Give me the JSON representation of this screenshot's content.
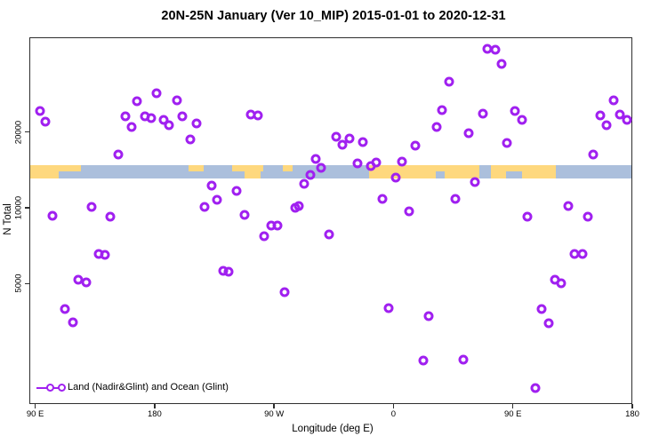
{
  "title": "20N-25N January (Ver 10_MIP)  2015-01-01 to 2020-12-31",
  "x_axis": {
    "label": "Longitude (deg E)",
    "ticks": [
      {
        "u": 90,
        "label": "90 E"
      },
      {
        "u": 180,
        "label": "180"
      },
      {
        "u": 270,
        "label": "90 W"
      },
      {
        "u": 360,
        "label": "0"
      },
      {
        "u": 450,
        "label": "90 E"
      },
      {
        "u": 540,
        "label": "180"
      }
    ]
  },
  "y_axis": {
    "label": "N Total",
    "scale": "log",
    "ticks": [
      {
        "value": 5000,
        "label": "5000"
      },
      {
        "value": 10000,
        "label": "10000"
      },
      {
        "value": 20000,
        "label": "20000"
      }
    ]
  },
  "legend": {
    "label": "Land (Nadir&Glint) and Ocean (Glint)"
  },
  "colors": {
    "point": "#A020F0",
    "land": "#FED87E",
    "ocean": "#ABBFDC",
    "frame": "#2f2f2f",
    "text": "#000000"
  },
  "map_strip": {
    "description": "land/ocean reference band for the 20N-25N latitude zone",
    "value_center": 14000,
    "land_segments": [
      {
        "row": "top",
        "u0": 85.5,
        "u1": 124
      },
      {
        "row": "bottom",
        "u0": 85.5,
        "u1": 107
      },
      {
        "row": "top",
        "u0": 205,
        "u1": 216
      },
      {
        "row": "top",
        "u0": 238,
        "u1": 261
      },
      {
        "row": "bottom",
        "u0": 247,
        "u1": 259
      },
      {
        "row": "top",
        "u0": 276,
        "u1": 283
      },
      {
        "row": "full",
        "u0": 341,
        "u1": 482
      }
    ],
    "ocean_notches": [
      {
        "row": "bottom",
        "u0": 391,
        "u1": 398
      },
      {
        "row": "full",
        "u0": 424,
        "u1": 433
      },
      {
        "row": "bottom",
        "u0": 444,
        "u1": 456
      }
    ]
  },
  "chart_data": {
    "type": "scatter",
    "title": "20N-25N January (Ver 10_MIP)  2015-01-01 to 2020-12-31",
    "xlabel": "Longitude (deg E)",
    "ylabel": "N Total",
    "x_unit": "axis degrees, increasing rightward from 90E; 90..540 wraps through 180/-180 and 0",
    "x_range": [
      85.5,
      540
    ],
    "y_scale": "log",
    "y_range": [
      1700,
      47500
    ],
    "legend_position": "bottom-left-inside",
    "grid": false,
    "series_name": "Land (Nadir&Glint) and Ocean (Glint)",
    "points": [
      [
        93,
        24400
      ],
      [
        97,
        22100
      ],
      [
        102,
        9370
      ],
      [
        112,
        4000
      ],
      [
        118,
        3540
      ],
      [
        122,
        5230
      ],
      [
        128,
        5100
      ],
      [
        132,
        10160
      ],
      [
        137,
        6610
      ],
      [
        142,
        6570
      ],
      [
        146,
        9300
      ],
      [
        152,
        16400
      ],
      [
        157,
        23300
      ],
      [
        162,
        21100
      ],
      [
        166,
        26700
      ],
      [
        172,
        23300
      ],
      [
        177,
        22900
      ],
      [
        181,
        28700
      ],
      [
        186,
        22500
      ],
      [
        190,
        21400
      ],
      [
        196,
        26900
      ],
      [
        200,
        23300
      ],
      [
        206,
        18800
      ],
      [
        211,
        21800
      ],
      [
        217,
        10160
      ],
      [
        222,
        12350
      ],
      [
        226,
        10840
      ],
      [
        231,
        5670
      ],
      [
        235,
        5610
      ],
      [
        241,
        11760
      ],
      [
        247,
        9450
      ],
      [
        252,
        23600
      ],
      [
        257,
        23400
      ],
      [
        262,
        7780
      ],
      [
        267,
        8570
      ],
      [
        272,
        8540
      ],
      [
        277,
        4660
      ],
      [
        285,
        10080
      ],
      [
        288,
        10250
      ],
      [
        292,
        12550
      ],
      [
        297,
        13610
      ],
      [
        301,
        15750
      ],
      [
        305,
        14520
      ],
      [
        311,
        7900
      ],
      [
        316,
        19290
      ],
      [
        321,
        17930
      ],
      [
        326,
        18980
      ],
      [
        332,
        15120
      ],
      [
        336,
        18380
      ],
      [
        342,
        14770
      ],
      [
        346,
        15250
      ],
      [
        351,
        10930
      ],
      [
        356,
        4030
      ],
      [
        361,
        13280
      ],
      [
        366,
        15370
      ],
      [
        371,
        9760
      ],
      [
        376,
        17780
      ],
      [
        382,
        2500
      ],
      [
        386,
        3750
      ],
      [
        392,
        21100
      ],
      [
        396,
        24600
      ],
      [
        401,
        31900
      ],
      [
        406,
        10930
      ],
      [
        412,
        2510
      ],
      [
        416,
        19900
      ],
      [
        421,
        12760
      ],
      [
        427,
        23800
      ],
      [
        430,
        43000
      ],
      [
        436,
        42700
      ],
      [
        441,
        37500
      ],
      [
        445,
        18200
      ],
      [
        451,
        24400
      ],
      [
        456,
        22500
      ],
      [
        460,
        9300
      ],
      [
        466,
        1940
      ],
      [
        471,
        4000
      ],
      [
        476,
        3510
      ],
      [
        481,
        5230
      ],
      [
        486,
        5060
      ],
      [
        491,
        10250
      ],
      [
        496,
        6610
      ],
      [
        502,
        6610
      ],
      [
        506,
        9300
      ],
      [
        510,
        16400
      ],
      [
        515,
        23400
      ],
      [
        520,
        21400
      ],
      [
        525,
        26900
      ],
      [
        530,
        23600
      ],
      [
        535,
        22500
      ]
    ]
  }
}
